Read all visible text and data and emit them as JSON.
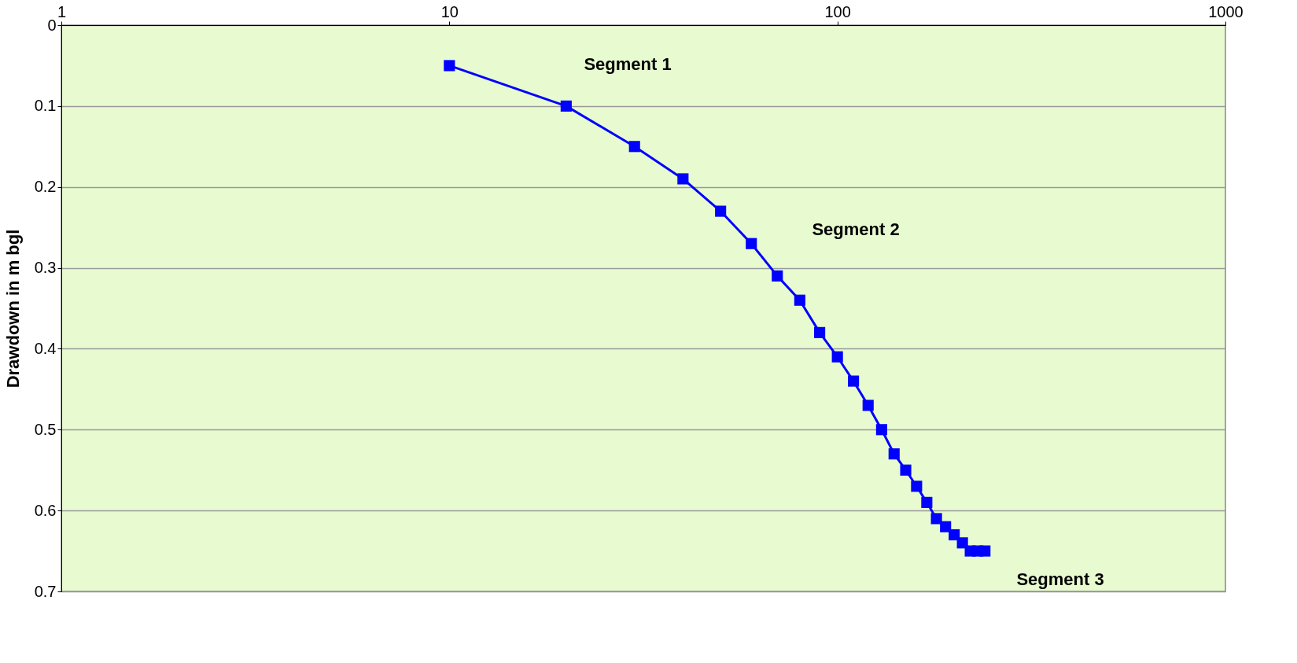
{
  "chart_data": {
    "type": "line",
    "ylabel": "Drawdown in m bgl",
    "x": [
      10,
      20,
      30,
      40,
      50,
      60,
      70,
      80,
      90,
      100,
      110,
      120,
      130,
      140,
      150,
      160,
      170,
      180,
      190,
      200,
      210,
      220,
      230,
      240
    ],
    "series": [
      {
        "color": "#0000ff",
        "values": [
          0.05,
          0.1,
          0.15,
          0.19,
          0.23,
          0.27,
          0.31,
          0.34,
          0.38,
          0.41,
          0.44,
          0.47,
          0.5,
          0.53,
          0.55,
          0.57,
          0.59,
          0.61,
          0.62,
          0.63,
          0.64,
          0.65,
          0.65,
          0.65
        ]
      }
    ],
    "xlim": [
      1,
      1000
    ],
    "xticks": [
      1,
      10,
      100,
      1000
    ],
    "log": "x",
    "ylim": [
      0.7,
      0
    ],
    "yticks": [
      0,
      0.1,
      0.2,
      0.3,
      0.4,
      0.5,
      0.6,
      0.7
    ],
    "grid": "y",
    "marker": "square",
    "line_style": "solid",
    "annotations": [
      "Segment 1",
      "Segment 2",
      "Segment 3"
    ]
  }
}
